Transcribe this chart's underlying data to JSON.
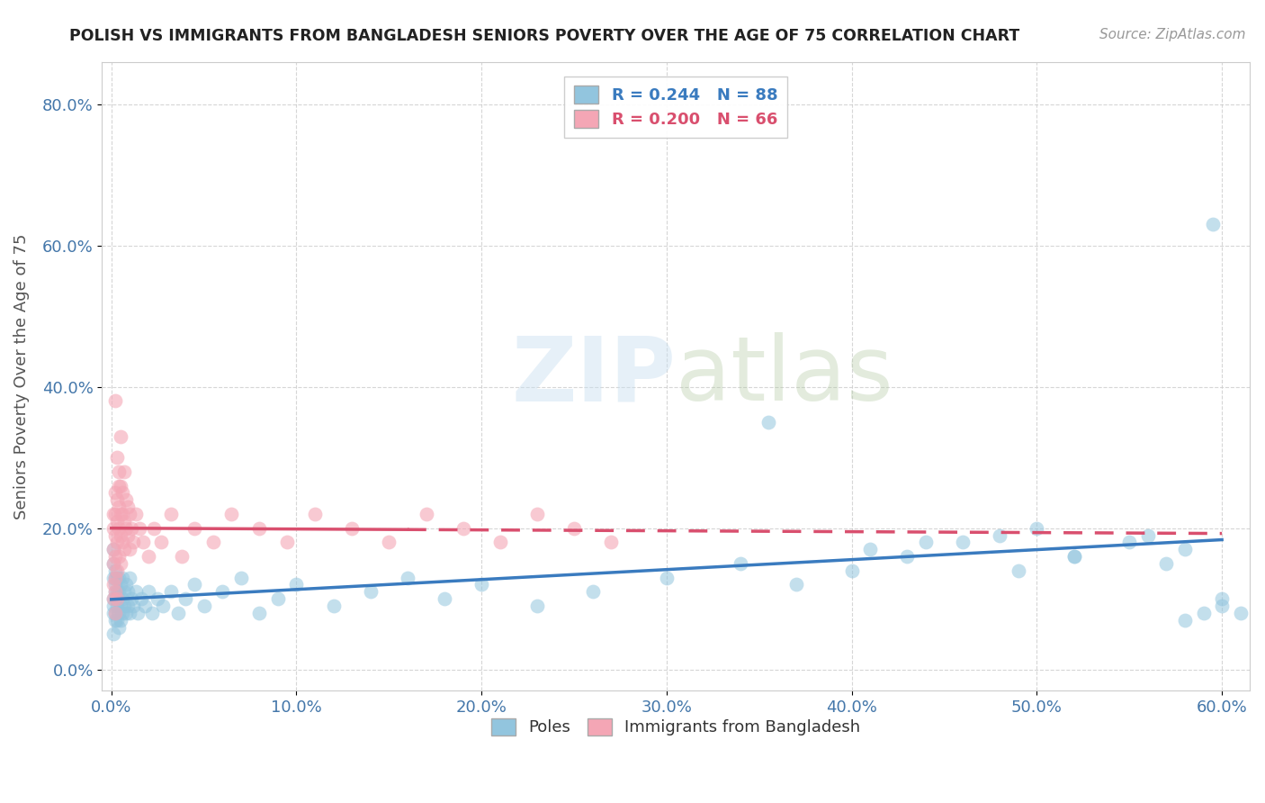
{
  "title": "POLISH VS IMMIGRANTS FROM BANGLADESH SENIORS POVERTY OVER THE AGE OF 75 CORRELATION CHART",
  "source": "Source: ZipAtlas.com",
  "ylabel": "Seniors Poverty Over the Age of 75",
  "xlim": [
    -0.005,
    0.615
  ],
  "ylim": [
    -0.03,
    0.86
  ],
  "xticks": [
    0.0,
    0.1,
    0.2,
    0.3,
    0.4,
    0.5,
    0.6
  ],
  "yticks": [
    0.0,
    0.2,
    0.4,
    0.6,
    0.8
  ],
  "xtick_labels": [
    "0.0%",
    "10.0%",
    "20.0%",
    "30.0%",
    "40.0%",
    "50.0%",
    "60.0%"
  ],
  "ytick_labels": [
    "0.0%",
    "20.0%",
    "40.0%",
    "60.0%",
    "80.0%"
  ],
  "blue_color": "#92C5DE",
  "pink_color": "#F4A6B5",
  "blue_line_color": "#3a7bbf",
  "pink_line_color": "#d94f6e",
  "background_color": "#ffffff",
  "grid_color": "#cccccc",
  "title_color": "#222222",
  "watermark_color": "#dce8f5",
  "legend_blue_text_color": "#3a7bbf",
  "legend_pink_text_color": "#d94f6e",
  "tick_color": "#4477aa",
  "ylabel_color": "#555555",
  "blue_points_x": [
    0.001,
    0.001,
    0.001,
    0.001,
    0.001,
    0.001,
    0.001,
    0.002,
    0.002,
    0.002,
    0.002,
    0.002,
    0.002,
    0.002,
    0.003,
    0.003,
    0.003,
    0.003,
    0.003,
    0.004,
    0.004,
    0.004,
    0.004,
    0.005,
    0.005,
    0.005,
    0.006,
    0.006,
    0.006,
    0.007,
    0.007,
    0.008,
    0.008,
    0.009,
    0.009,
    0.01,
    0.01,
    0.011,
    0.012,
    0.013,
    0.014,
    0.016,
    0.018,
    0.02,
    0.022,
    0.025,
    0.028,
    0.032,
    0.036,
    0.04,
    0.045,
    0.05,
    0.06,
    0.07,
    0.08,
    0.09,
    0.1,
    0.12,
    0.14,
    0.16,
    0.18,
    0.2,
    0.23,
    0.26,
    0.3,
    0.34,
    0.37,
    0.4,
    0.43,
    0.46,
    0.49,
    0.52,
    0.55,
    0.57,
    0.58,
    0.59,
    0.6,
    0.355,
    0.48,
    0.41,
    0.5,
    0.44,
    0.52,
    0.56,
    0.58,
    0.6,
    0.61,
    0.595
  ],
  "blue_points_y": [
    0.05,
    0.08,
    0.1,
    0.13,
    0.15,
    0.17,
    0.09,
    0.07,
    0.1,
    0.12,
    0.14,
    0.11,
    0.08,
    0.13,
    0.09,
    0.11,
    0.13,
    0.07,
    0.1,
    0.08,
    0.11,
    0.13,
    0.06,
    0.09,
    0.12,
    0.07,
    0.1,
    0.08,
    0.13,
    0.09,
    0.11,
    0.08,
    0.12,
    0.09,
    0.11,
    0.08,
    0.13,
    0.1,
    0.09,
    0.11,
    0.08,
    0.1,
    0.09,
    0.11,
    0.08,
    0.1,
    0.09,
    0.11,
    0.08,
    0.1,
    0.12,
    0.09,
    0.11,
    0.13,
    0.08,
    0.1,
    0.12,
    0.09,
    0.11,
    0.13,
    0.1,
    0.12,
    0.09,
    0.11,
    0.13,
    0.15,
    0.12,
    0.14,
    0.16,
    0.18,
    0.14,
    0.16,
    0.18,
    0.15,
    0.17,
    0.08,
    0.1,
    0.35,
    0.19,
    0.17,
    0.2,
    0.18,
    0.16,
    0.19,
    0.07,
    0.09,
    0.08,
    0.63
  ],
  "pink_points_x": [
    0.001,
    0.001,
    0.001,
    0.001,
    0.001,
    0.001,
    0.002,
    0.002,
    0.002,
    0.002,
    0.002,
    0.002,
    0.002,
    0.003,
    0.003,
    0.003,
    0.003,
    0.003,
    0.004,
    0.004,
    0.004,
    0.004,
    0.005,
    0.005,
    0.005,
    0.005,
    0.006,
    0.006,
    0.006,
    0.007,
    0.007,
    0.007,
    0.008,
    0.008,
    0.009,
    0.009,
    0.01,
    0.01,
    0.011,
    0.012,
    0.013,
    0.015,
    0.017,
    0.02,
    0.023,
    0.027,
    0.032,
    0.038,
    0.045,
    0.055,
    0.065,
    0.08,
    0.095,
    0.11,
    0.13,
    0.15,
    0.17,
    0.19,
    0.21,
    0.23,
    0.25,
    0.27,
    0.002,
    0.003,
    0.004,
    0.005
  ],
  "pink_points_y": [
    0.12,
    0.15,
    0.17,
    0.2,
    0.22,
    0.1,
    0.13,
    0.16,
    0.19,
    0.22,
    0.25,
    0.11,
    0.08,
    0.14,
    0.18,
    0.21,
    0.24,
    0.1,
    0.16,
    0.2,
    0.23,
    0.26,
    0.15,
    0.19,
    0.22,
    0.26,
    0.18,
    0.22,
    0.25,
    0.17,
    0.21,
    0.28,
    0.2,
    0.24,
    0.19,
    0.23,
    0.17,
    0.22,
    0.2,
    0.18,
    0.22,
    0.2,
    0.18,
    0.16,
    0.2,
    0.18,
    0.22,
    0.16,
    0.2,
    0.18,
    0.22,
    0.2,
    0.18,
    0.22,
    0.2,
    0.18,
    0.22,
    0.2,
    0.18,
    0.22,
    0.2,
    0.18,
    0.38,
    0.3,
    0.28,
    0.33
  ]
}
